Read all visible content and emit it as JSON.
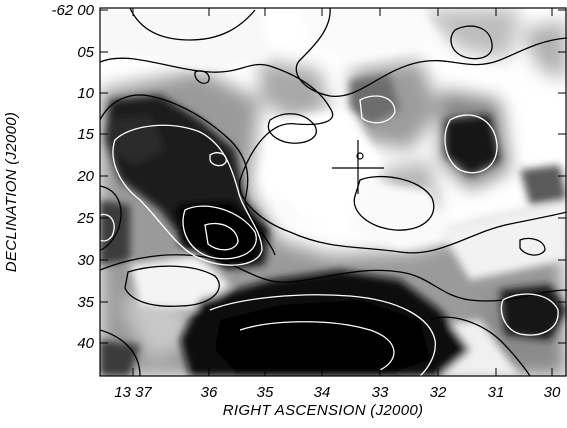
{
  "figure": {
    "x_axis_title": "RIGHT ASCENSION (J2000)",
    "y_axis_title": "DECLINATION (J2000)",
    "x_tick_labels": [
      "13 37",
      "36",
      "35",
      "34",
      "33",
      "32",
      "31",
      "30"
    ],
    "y_tick_labels": [
      "-62 00",
      "05",
      "10",
      "15",
      "20",
      "25",
      "30",
      "35",
      "40"
    ],
    "marker": "cross",
    "colors": {
      "ink": "#000000",
      "background": "#ffffff",
      "contour_light": "#ffffff",
      "contour_dark": "#000000"
    },
    "greyscale": "dark = high intensity"
  }
}
